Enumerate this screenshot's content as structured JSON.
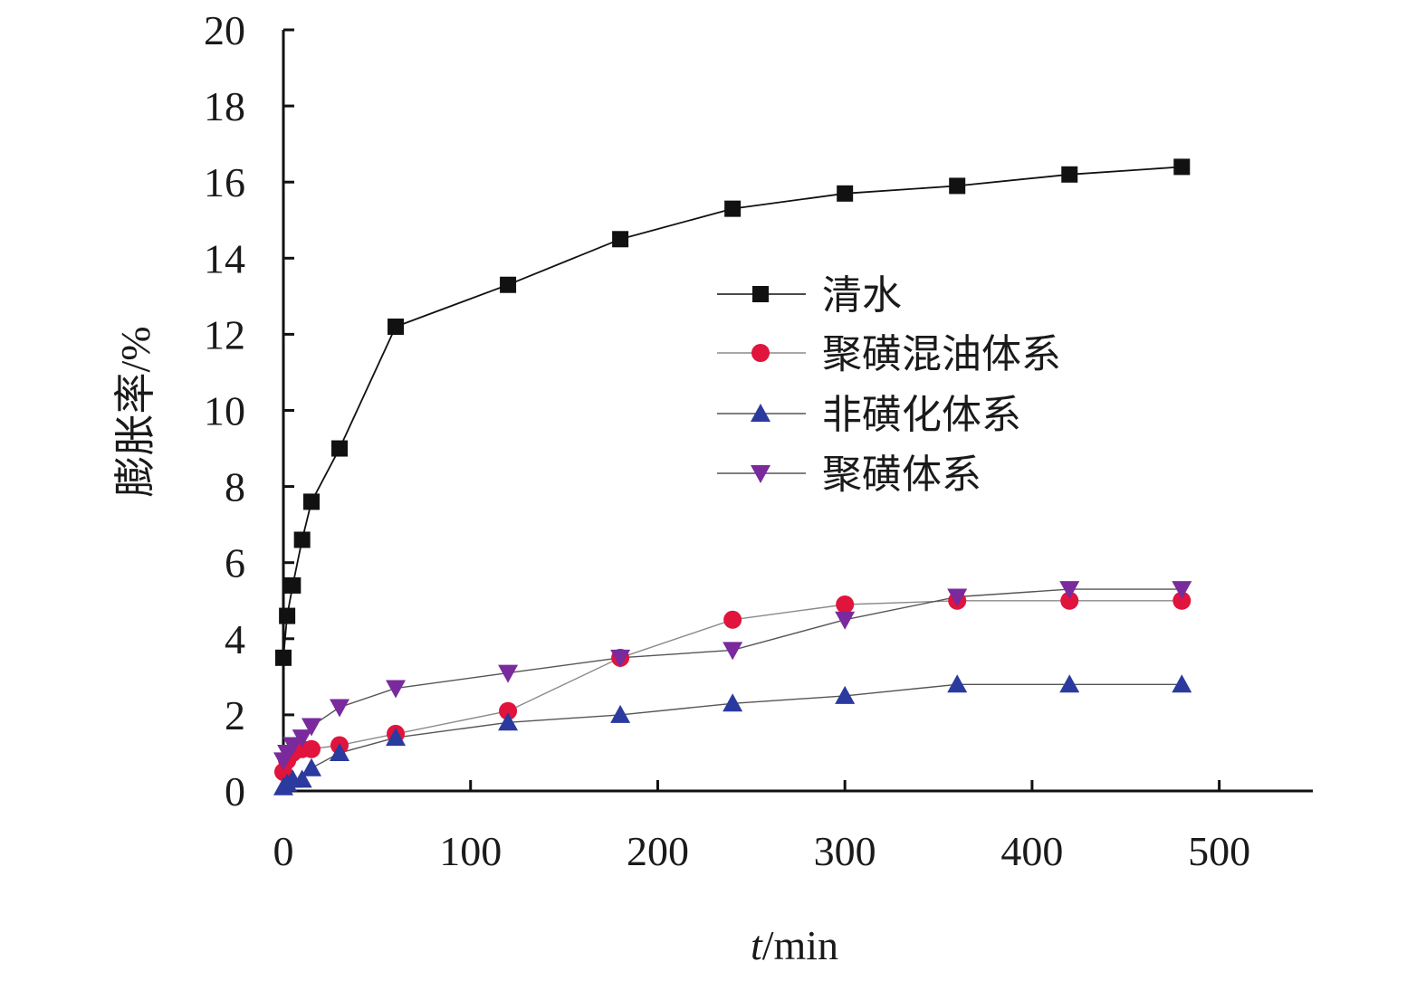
{
  "chart_data": {
    "type": "line",
    "xlabel_italic": "t",
    "xlabel_rest": "/min",
    "ylabel": "膨胀率/%",
    "xlim": [
      0,
      550
    ],
    "ylim": [
      0,
      20
    ],
    "x_ticks": [
      0,
      100,
      200,
      300,
      400,
      500
    ],
    "y_ticks": [
      0,
      2,
      4,
      6,
      8,
      10,
      12,
      14,
      16,
      18,
      20
    ],
    "legend_position": "center-right",
    "series": [
      {
        "name": "清水",
        "marker": "square",
        "color": "#111111",
        "line_color": "#111111",
        "x": [
          0,
          2,
          5,
          10,
          15,
          30,
          60,
          120,
          180,
          240,
          300,
          360,
          420,
          480
        ],
        "y": [
          3.5,
          4.6,
          5.4,
          6.6,
          7.6,
          9.0,
          12.2,
          13.3,
          14.5,
          15.3,
          15.7,
          15.9,
          16.2,
          16.4
        ]
      },
      {
        "name": "聚磺混油体系",
        "marker": "circle",
        "color": "#e0143c",
        "line_color": "#8a8a8a",
        "x": [
          0,
          2,
          5,
          10,
          15,
          30,
          60,
          120,
          180,
          240,
          300,
          360,
          420,
          480
        ],
        "y": [
          0.5,
          0.8,
          1.0,
          1.1,
          1.1,
          1.2,
          1.5,
          2.1,
          3.5,
          4.5,
          4.9,
          5.0,
          5.0,
          5.0
        ]
      },
      {
        "name": "非磺化体系",
        "marker": "triangle-up",
        "color": "#2b3a9e",
        "line_color": "#555555",
        "x": [
          0,
          2,
          5,
          10,
          15,
          30,
          60,
          120,
          180,
          240,
          300,
          360,
          420,
          480
        ],
        "y": [
          0.1,
          0.2,
          0.3,
          0.3,
          0.6,
          1.0,
          1.4,
          1.8,
          2.0,
          2.3,
          2.5,
          2.8,
          2.8,
          2.8
        ]
      },
      {
        "name": "聚磺体系",
        "marker": "triangle-down",
        "color": "#7a2a9c",
        "line_color": "#555555",
        "x": [
          0,
          2,
          5,
          10,
          15,
          30,
          60,
          120,
          180,
          240,
          300,
          360,
          420,
          480
        ],
        "y": [
          0.8,
          1.0,
          1.2,
          1.4,
          1.7,
          2.2,
          2.7,
          3.1,
          3.5,
          3.7,
          4.5,
          5.1,
          5.3,
          5.3
        ]
      }
    ]
  }
}
